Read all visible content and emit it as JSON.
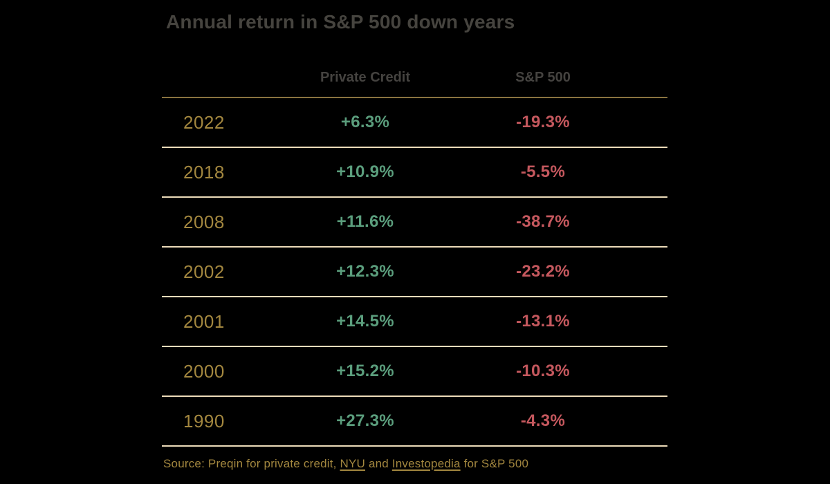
{
  "title": "Annual return in S&P 500 down years",
  "columns": {
    "year": "",
    "private_credit": "Private Credit",
    "sp500": "S&P 500"
  },
  "rows": [
    {
      "year": "2022",
      "private_credit": "+6.3%",
      "sp500": "-19.3%"
    },
    {
      "year": "2018",
      "private_credit": "+10.9%",
      "sp500": "-5.5%"
    },
    {
      "year": "2008",
      "private_credit": "+11.6%",
      "sp500": "-38.7%"
    },
    {
      "year": "2002",
      "private_credit": "+12.3%",
      "sp500": "-23.2%"
    },
    {
      "year": "2001",
      "private_credit": "+14.5%",
      "sp500": "-13.1%"
    },
    {
      "year": "2000",
      "private_credit": "+15.2%",
      "sp500": "-10.3%"
    },
    {
      "year": "1990",
      "private_credit": "+27.3%",
      "sp500": "-4.3%"
    }
  ],
  "footer": {
    "prefix": "Source: Preqin for private credit, ",
    "link_nyu": "NYU",
    "middle": " and ",
    "link_investopedia": "Investopedia",
    "suffix": " for S&P 500"
  },
  "colors": {
    "background": "#000000",
    "title_text": "#46443f",
    "header_text": "#454340",
    "gold_text": "#a3873f",
    "positive_green": "#5b9e7d",
    "negative_red": "#c5585e",
    "header_divider": "#8b7440",
    "row_divider": "#eddcba"
  },
  "chart_data": {
    "type": "table",
    "title": "Annual return in S&P 500 down years",
    "categories": [
      "2022",
      "2018",
      "2008",
      "2002",
      "2001",
      "2000",
      "1990"
    ],
    "series": [
      {
        "name": "Private Credit",
        "values": [
          6.3,
          10.9,
          11.6,
          12.3,
          14.5,
          15.2,
          27.3
        ]
      },
      {
        "name": "S&P 500",
        "values": [
          -19.3,
          -5.5,
          -38.7,
          -23.2,
          -13.1,
          -10.3,
          -4.3
        ]
      }
    ],
    "value_unit": "%",
    "annotations": "Source: Preqin for private credit, NYU and Investopedia for S&P 500"
  }
}
